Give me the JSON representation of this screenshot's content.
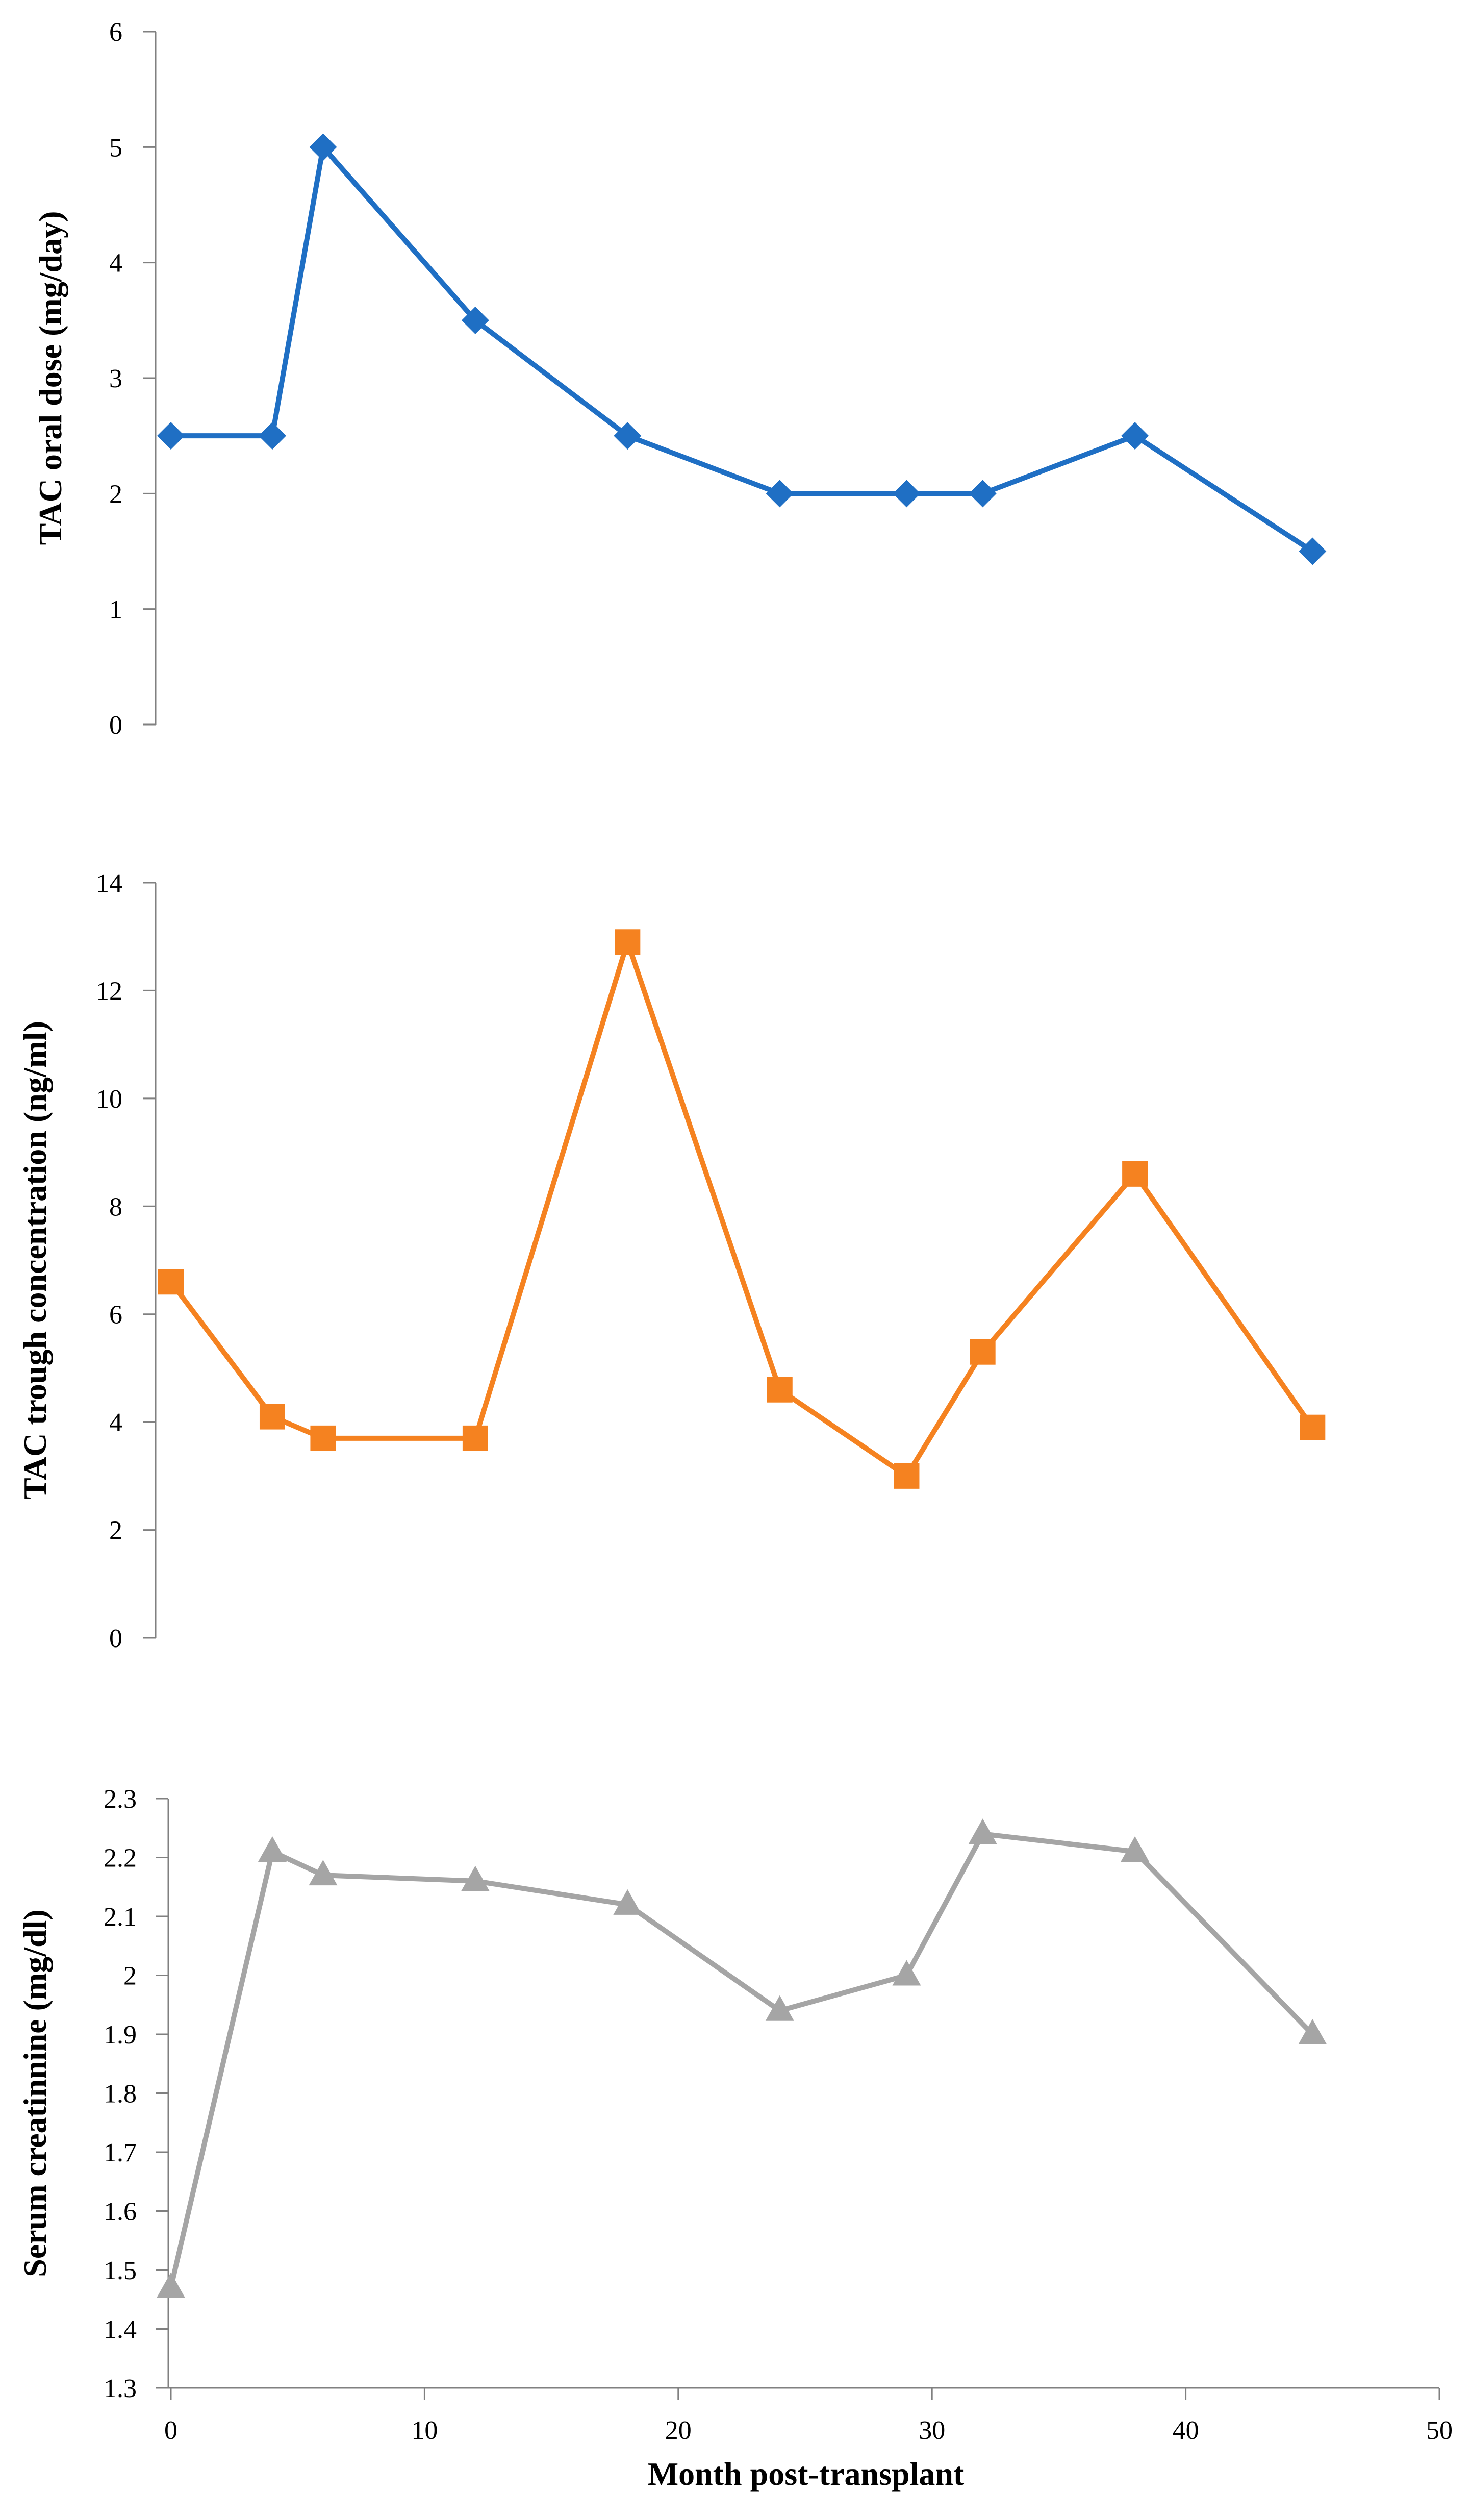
{
  "chart_data": [
    {
      "type": "line",
      "title": "",
      "xlabel": "",
      "ylabel": "TAC oral dose (mg/day)",
      "xlim": [
        0,
        50
      ],
      "ylim": [
        0,
        6
      ],
      "y_ticks": [
        0,
        1,
        2,
        3,
        4,
        5,
        6
      ],
      "x_ticks": [],
      "marker": "diamond",
      "color": "#1F6FC4",
      "series": [
        {
          "x": [
            0,
            4,
            6,
            12,
            18,
            24,
            29,
            32,
            38,
            45
          ],
          "values": [
            2.5,
            2.5,
            5,
            3.5,
            2.5,
            2,
            2,
            2,
            2.5,
            1.5
          ]
        }
      ]
    },
    {
      "type": "line",
      "title": "",
      "xlabel": "",
      "ylabel": "TAC trough concentration (ng/ml)",
      "xlim": [
        0,
        50
      ],
      "ylim": [
        0,
        14
      ],
      "y_ticks": [
        0,
        2,
        4,
        6,
        8,
        10,
        12,
        14
      ],
      "x_ticks": [],
      "marker": "square",
      "color": "#F58220",
      "series": [
        {
          "x": [
            0,
            4,
            6,
            12,
            18,
            24,
            29,
            32,
            38,
            45
          ],
          "values": [
            6.6,
            4.1,
            3.7,
            3.7,
            12.9,
            4.6,
            3.0,
            5.3,
            8.6,
            3.9
          ]
        }
      ]
    },
    {
      "type": "line",
      "title": "",
      "xlabel": "Month post-transplant",
      "ylabel": "Serum creatinnine (mg/dl)",
      "xlim": [
        0,
        50
      ],
      "ylim": [
        1.3,
        2.3
      ],
      "y_ticks": [
        1.3,
        1.4,
        1.5,
        1.6,
        1.7,
        1.8,
        1.9,
        2,
        2.1,
        2.2,
        2.3
      ],
      "x_ticks": [
        0,
        10,
        20,
        30,
        40,
        50
      ],
      "marker": "triangle",
      "color": "#A5A5A5",
      "series": [
        {
          "x": [
            0,
            4,
            6,
            12,
            18,
            24,
            29,
            32,
            38,
            45
          ],
          "values": [
            1.47,
            2.21,
            2.17,
            2.16,
            2.12,
            1.94,
            2.0,
            2.24,
            2.21,
            1.9
          ]
        }
      ]
    }
  ]
}
